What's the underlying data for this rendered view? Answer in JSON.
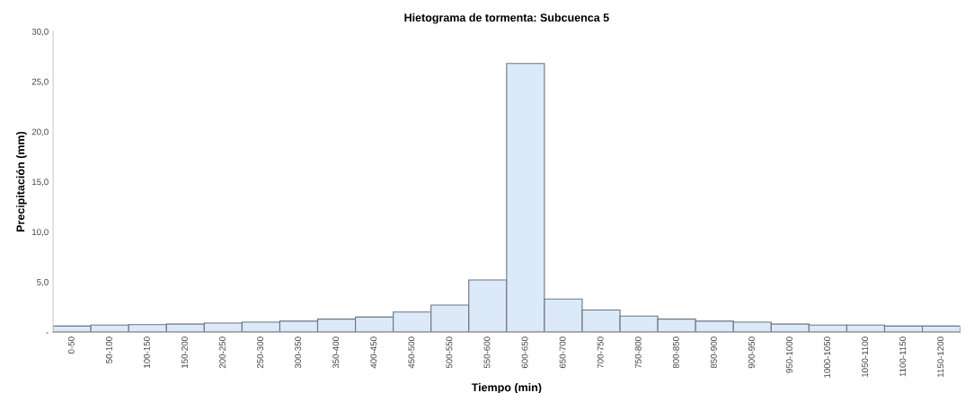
{
  "chart_data": {
    "type": "bar",
    "title": "Hietograma de tormenta: Subcuenca 5",
    "xlabel": "Tiempo (min)",
    "ylabel": "Precipitación (mm)",
    "categories": [
      "0-50",
      "50-100",
      "100-150",
      "150-200",
      "200-250",
      "250-300",
      "300-350",
      "350-400",
      "400-450",
      "450-500",
      "500-550",
      "550-600",
      "600-650",
      "650-700",
      "700-750",
      "750-800",
      "800-850",
      "850-900",
      "900-950",
      "950-1000",
      "1000-1050",
      "1050-1100",
      "1100-1150",
      "1150-1200"
    ],
    "values": [
      0.6,
      0.7,
      0.75,
      0.8,
      0.9,
      1.0,
      1.1,
      1.3,
      1.5,
      2.0,
      2.7,
      5.2,
      26.8,
      3.3,
      2.2,
      1.6,
      1.3,
      1.1,
      1.0,
      0.8,
      0.7,
      0.7,
      0.6,
      0.6
    ],
    "color": "#dce9f8",
    "ylim": [
      0,
      30
    ],
    "yticks": [
      {
        "value": 0,
        "label": "-"
      },
      {
        "value": 5,
        "label": "5,0"
      },
      {
        "value": 10,
        "label": "10,0"
      },
      {
        "value": 15,
        "label": "15,0"
      },
      {
        "value": 20,
        "label": "20,0"
      },
      {
        "value": 25,
        "label": "25,0"
      },
      {
        "value": 30,
        "label": "30,0"
      }
    ],
    "grid": false,
    "legend": false
  }
}
